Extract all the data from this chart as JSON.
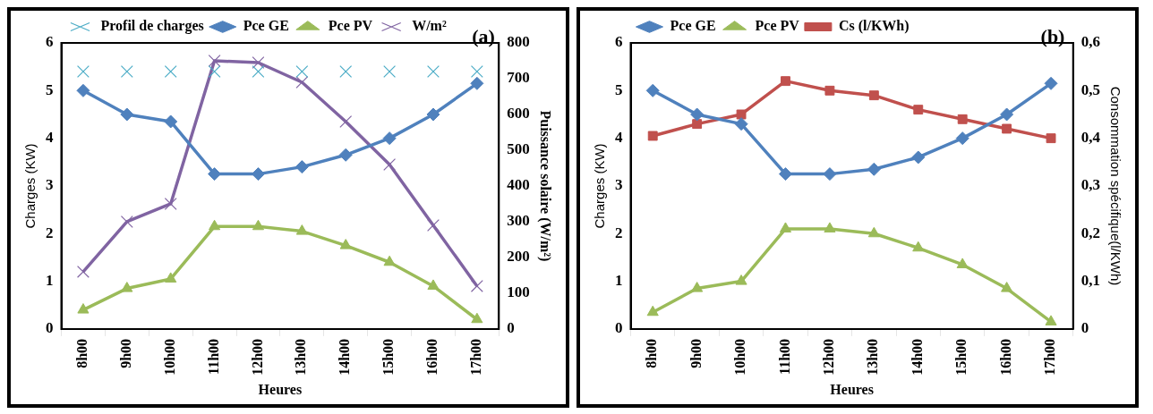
{
  "chart_data": [
    {
      "type": "line",
      "annotations": [
        "(a)"
      ],
      "xlabel": "Heures",
      "ylabel": "Charges (KW)",
      "y2label": "Puissance solaire (W/m²)",
      "categories": [
        "8h00",
        "9h00",
        "10h00",
        "11h00",
        "12h00",
        "13h00",
        "14h00",
        "15h00",
        "16h00",
        "17h00"
      ],
      "series": [
        {
          "name": "Profil de charges",
          "type": "scatter",
          "marker": "cross",
          "color": "#4bacc6",
          "values": [
            5.4,
            5.4,
            5.4,
            5.4,
            5.4,
            5.4,
            5.4,
            5.4,
            5.4,
            5.4
          ]
        },
        {
          "name": "Pce GE",
          "marker": "diamond",
          "color": "#4f81bd",
          "values": [
            5.0,
            4.5,
            4.35,
            3.25,
            3.25,
            3.4,
            3.65,
            4.0,
            4.5,
            5.15
          ]
        },
        {
          "name": "Pce PV",
          "marker": "triangle",
          "color": "#9bbb59",
          "values": [
            0.4,
            0.85,
            1.05,
            2.15,
            2.15,
            2.05,
            1.75,
            1.4,
            0.9,
            0.2
          ]
        },
        {
          "name": "W/m²",
          "marker": "cross",
          "axis": "y2",
          "color": "#8064a2",
          "values": [
            160,
            300,
            350,
            750,
            745,
            690,
            580,
            460,
            290,
            120
          ]
        }
      ],
      "ylim": [
        0,
        6
      ],
      "yticks": [
        0,
        1,
        2,
        3,
        4,
        5,
        6
      ],
      "y2lim": [
        0,
        800
      ],
      "y2ticks": [
        0,
        100,
        200,
        300,
        400,
        500,
        600,
        700,
        800
      ],
      "grid": false,
      "legend": "top left"
    },
    {
      "type": "line",
      "annotations": [
        "(b)"
      ],
      "xlabel": "Heures",
      "ylabel": "Charges (KW)",
      "y2label": "Consommation spécifique(l/KWh)",
      "categories": [
        "8h00",
        "9h00",
        "10h00",
        "11h00",
        "12h00",
        "13h00",
        "14h00",
        "15h00",
        "16h00",
        "17h00"
      ],
      "series": [
        {
          "name": "Pce GE",
          "marker": "diamond",
          "color": "#4f81bd",
          "values": [
            5.0,
            4.5,
            4.3,
            3.25,
            3.25,
            3.35,
            3.6,
            4.0,
            4.5,
            5.15
          ]
        },
        {
          "name": "Pce PV",
          "marker": "triangle",
          "color": "#9bbb59",
          "values": [
            0.35,
            0.85,
            1.0,
            2.1,
            2.1,
            2.0,
            1.7,
            1.35,
            0.85,
            0.15
          ]
        },
        {
          "name": "Cs (l/KWh)",
          "marker": "square",
          "axis": "y2",
          "color": "#c0504d",
          "values": [
            0.405,
            0.43,
            0.45,
            0.52,
            0.5,
            0.49,
            0.46,
            0.44,
            0.42,
            0.4
          ]
        }
      ],
      "ylim": [
        0,
        6
      ],
      "yticks": [
        0,
        1,
        2,
        3,
        4,
        5,
        6
      ],
      "y2lim": [
        0,
        0.6
      ],
      "y2ticks": [
        0,
        {
          "value": 0.1,
          "label": "0,1"
        },
        {
          "value": 0.2,
          "label": "0,2"
        },
        {
          "value": 0.3,
          "label": "0,3"
        },
        {
          "value": 0.4,
          "label": "0,4"
        },
        {
          "value": 0.5,
          "label": "0,5"
        },
        {
          "value": 0.6,
          "label": "0,6"
        }
      ],
      "grid": false,
      "legend": "top left"
    }
  ]
}
